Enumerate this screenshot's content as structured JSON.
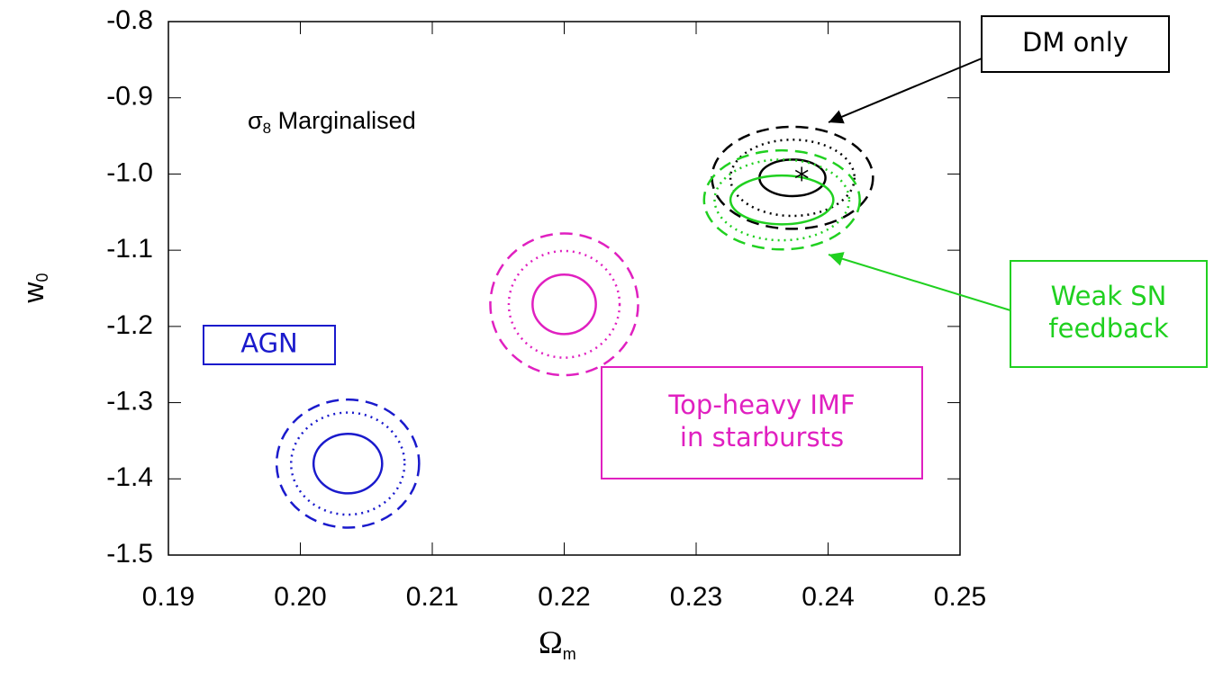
{
  "chart_data": {
    "type": "contour",
    "annotation": [
      "σ",
      "8",
      " Marginalised"
    ],
    "x_label": [
      "Ω",
      "m"
    ],
    "y_label": [
      "w",
      "0"
    ],
    "xlim": [
      0.19,
      0.25
    ],
    "ylim": [
      -1.5,
      -0.8
    ],
    "xticks": [
      0.19,
      {
        "value": 0.2,
        "label": "0.20"
      },
      0.21,
      0.22,
      0.23,
      0.24,
      0.25
    ],
    "yticks": [
      -1.5,
      -1.4,
      -1.3,
      -1.2,
      -1.1,
      {
        "value": -1.0,
        "label": "-1.0"
      },
      -0.9,
      -0.8
    ],
    "marker": {
      "x": 0.238,
      "y": -1.0
    },
    "series": [
      {
        "name": [
          "AGN"
        ],
        "color": "#1a1acc",
        "x": 0.2036,
        "y": -1.38,
        "levels": [
          {
            "style": "solid",
            "rx": 0.0026,
            "ry": 0.039
          },
          {
            "style": "dotted",
            "rx": 0.0043,
            "ry": 0.067
          },
          {
            "style": "dashed",
            "rx": 0.0054,
            "ry": 0.084
          }
        ]
      },
      {
        "name": [
          "Top-heavy IMF",
          "in starbursts"
        ],
        "color": "#e020c0",
        "x": 0.22,
        "y": -1.171,
        "levels": [
          {
            "style": "solid",
            "rx": 0.0024,
            "ry": 0.039
          },
          {
            "style": "dotted",
            "rx": 0.0042,
            "ry": 0.07
          },
          {
            "style": "dashed",
            "rx": 0.0056,
            "ry": 0.093
          }
        ]
      },
      {
        "name": [
          "DM only"
        ],
        "color": "#000000",
        "x": 0.2373,
        "y": -1.005,
        "levels": [
          {
            "style": "solid",
            "rx": 0.0025,
            "ry": 0.024
          },
          {
            "style": "dotted",
            "rx": 0.0047,
            "ry": 0.05
          },
          {
            "style": "dashed",
            "rx": 0.0061,
            "ry": 0.067
          }
        ]
      },
      {
        "name": [
          "Weak SN",
          "feedback"
        ],
        "color": "#20d020",
        "x": 0.2365,
        "y": -1.034,
        "levels": [
          {
            "style": "solid",
            "rx": 0.0039,
            "ry": 0.032
          },
          {
            "style": "dotted",
            "rx": 0.0051,
            "ry": 0.053
          },
          {
            "style": "dashed",
            "rx": 0.0059,
            "ry": 0.065
          }
        ]
      }
    ]
  }
}
